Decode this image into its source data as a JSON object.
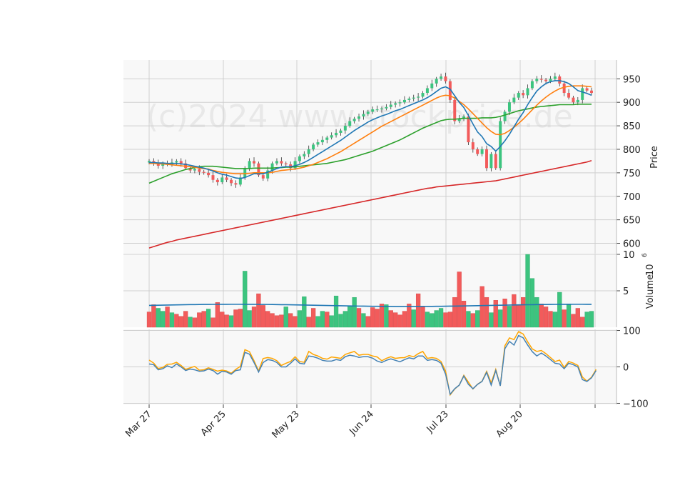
{
  "chart_data": {
    "type": "candlestick",
    "watermark": "(c)2024 www.stockprice.de",
    "x_ticks": [
      "Mar 27",
      "Apr 25",
      "May 23",
      "Jun 24",
      "Jul 23",
      "Aug 20"
    ],
    "colors": {
      "up": "#3cc47f",
      "down": "#f25b5b",
      "ma_short": "#1f77b4",
      "ma_mid": "#ff7f0e",
      "ma_long": "#2ca02c",
      "ma_200": "#d62728",
      "osc_1": "#4682b4",
      "osc_2": "#ffa500"
    },
    "price_panel": {
      "ylabel": "Price",
      "ylim": [
        578,
        990
      ],
      "yticks": [
        "600",
        "650",
        "700",
        "750",
        "800",
        "850",
        "900",
        "950"
      ],
      "close": [
        775,
        770,
        765,
        770,
        768,
        772,
        775,
        770,
        760,
        755,
        758,
        752,
        750,
        745,
        735,
        730,
        740,
        735,
        728,
        725,
        740,
        760,
        775,
        770,
        745,
        738,
        755,
        770,
        775,
        770,
        768,
        760,
        775,
        785,
        790,
        800,
        810,
        815,
        820,
        825,
        830,
        835,
        840,
        850,
        860,
        865,
        870,
        875,
        880,
        885,
        885,
        887,
        890,
        895,
        898,
        900,
        905,
        908,
        910,
        912,
        920,
        930,
        940,
        950,
        955,
        945,
        905,
        860,
        865,
        870,
        815,
        800,
        790,
        800,
        760,
        790,
        760,
        860,
        880,
        900,
        910,
        920,
        915,
        930,
        945,
        950,
        948,
        945,
        950,
        955,
        940,
        920,
        910,
        900,
        905,
        930,
        925,
        920
      ],
      "ma_short": [
        772,
        772,
        771,
        771,
        770,
        770,
        770,
        769,
        768,
        766,
        764,
        762,
        760,
        757,
        754,
        750,
        747,
        745,
        742,
        739,
        738,
        740,
        744,
        748,
        748,
        748,
        751,
        755,
        759,
        762,
        763,
        763,
        765,
        768,
        772,
        777,
        783,
        789,
        795,
        801,
        807,
        813,
        819,
        826,
        833,
        840,
        846,
        852,
        858,
        863,
        867,
        871,
        874,
        878,
        882,
        885,
        889,
        893,
        897,
        901,
        905,
        910,
        916,
        923,
        930,
        933,
        928,
        914,
        900,
        889,
        872,
        854,
        837,
        827,
        812,
        806,
        796,
        806,
        818,
        832,
        848,
        864,
        878,
        895,
        910,
        924,
        933,
        940,
        944,
        946,
        946,
        944,
        940,
        933,
        925,
        922,
        919,
        915
      ],
      "ma_mid": [
        770,
        770,
        769,
        769,
        768,
        767,
        766,
        765,
        764,
        763,
        762,
        760,
        759,
        758,
        755,
        753,
        751,
        750,
        749,
        748,
        748,
        748,
        749,
        750,
        750,
        750,
        750,
        751,
        753,
        755,
        756,
        757,
        758,
        760,
        762,
        765,
        768,
        772,
        776,
        780,
        785,
        790,
        795,
        801,
        807,
        813,
        819,
        825,
        831,
        837,
        843,
        849,
        854,
        859,
        864,
        869,
        874,
        879,
        884,
        889,
        894,
        899,
        904,
        909,
        913,
        915,
        914,
        909,
        902,
        895,
        886,
        876,
        866,
        856,
        846,
        838,
        832,
        831,
        834,
        840,
        847,
        855,
        864,
        874,
        884,
        894,
        903,
        911,
        918,
        924,
        929,
        932,
        934,
        935,
        935,
        935,
        934,
        933
      ],
      "ma_long": [
        728,
        732,
        736,
        740,
        744,
        748,
        751,
        754,
        757,
        759,
        761,
        763,
        764,
        764,
        764,
        763,
        762,
        761,
        760,
        759,
        759,
        759,
        759,
        760,
        760,
        760,
        760,
        760,
        761,
        761,
        762,
        762,
        763,
        764,
        765,
        766,
        767,
        768,
        769,
        770,
        772,
        774,
        776,
        778,
        781,
        784,
        787,
        790,
        793,
        796,
        800,
        804,
        808,
        812,
        816,
        820,
        825,
        830,
        835,
        840,
        845,
        849,
        853,
        857,
        861,
        863,
        864,
        864,
        865,
        866,
        866,
        866,
        866,
        867,
        867,
        867,
        868,
        870,
        873,
        876,
        879,
        882,
        884,
        886,
        888,
        890,
        891,
        892,
        893,
        894,
        895,
        895,
        895,
        895,
        896,
        896,
        896,
        896
      ],
      "ma_200": [
        590,
        593,
        596,
        599,
        602,
        604,
        607,
        609,
        611,
        613,
        615,
        617,
        619,
        621,
        623,
        625,
        627,
        629,
        631,
        633,
        635,
        637,
        639,
        641,
        643,
        645,
        647,
        649,
        651,
        653,
        655,
        657,
        659,
        661,
        663,
        665,
        667,
        669,
        671,
        673,
        675,
        677,
        679,
        681,
        683,
        685,
        687,
        689,
        691,
        693,
        695,
        697,
        699,
        701,
        703,
        705,
        707,
        709,
        711,
        713,
        715,
        717,
        718,
        720,
        721,
        722,
        723,
        724,
        725,
        726,
        727,
        728,
        729,
        730,
        731,
        732,
        733,
        735,
        737,
        739,
        741,
        743,
        745,
        747,
        749,
        751,
        753,
        755,
        757,
        759,
        761,
        763,
        765,
        767,
        769,
        771,
        773,
        776
      ]
    },
    "volume_panel": {
      "ylabel": "Volume",
      "unit_exponent": "6",
      "ylim": [
        0,
        10
      ],
      "yticks": [
        "5",
        "10"
      ],
      "avg_volume": 3.0,
      "values": [
        2.1,
        3.1,
        2.6,
        2.2,
        2.8,
        2.0,
        1.8,
        1.5,
        2.2,
        1.4,
        1.3,
        2.0,
        2.2,
        2.5,
        1.3,
        3.4,
        2.1,
        1.7,
        1.6,
        2.4,
        2.5,
        7.7,
        2.3,
        2.8,
        4.6,
        3.0,
        2.2,
        1.9,
        1.6,
        1.7,
        2.8,
        1.9,
        1.5,
        2.3,
        4.2,
        1.4,
        2.6,
        1.5,
        2.2,
        2.1,
        1.6,
        4.3,
        1.8,
        2.2,
        2.9,
        4.1,
        2.6,
        1.9,
        1.5,
        2.7,
        2.5,
        3.2,
        3.1,
        2.3,
        2.0,
        1.7,
        2.2,
        3.2,
        2.4,
        4.6,
        2.9,
        2.1,
        1.9,
        2.3,
        2.6,
        2.0,
        2.1,
        4.1,
        7.6,
        3.6,
        2.2,
        1.9,
        2.3,
        5.6,
        4.1,
        2.0,
        3.7,
        2.4,
        3.9,
        2.9,
        4.5,
        3.0,
        4.1,
        10.0,
        6.7,
        4.1,
        3.2,
        2.8,
        2.2,
        2.1,
        4.8,
        2.4,
        3.2,
        1.8,
        2.6,
        1.4,
        2.1,
        2.2
      ],
      "down": [
        1,
        1,
        0,
        0,
        1,
        0,
        1,
        1,
        1,
        0,
        1,
        1,
        1,
        0,
        1,
        1,
        1,
        1,
        0,
        1,
        1,
        0,
        0,
        1,
        1,
        1,
        1,
        1,
        1,
        1,
        0,
        1,
        1,
        0,
        0,
        1,
        1,
        0,
        0,
        1,
        0,
        0,
        0,
        0,
        0,
        0,
        1,
        0,
        1,
        1,
        1,
        1,
        0,
        1,
        1,
        1,
        1,
        1,
        0,
        1,
        1,
        0,
        0,
        0,
        0,
        1,
        1,
        1,
        1,
        1,
        0,
        1,
        0,
        1,
        1,
        0,
        1,
        0,
        1,
        0,
        1,
        1,
        1,
        0,
        0,
        0,
        1,
        1,
        1,
        0,
        0,
        1,
        0,
        1,
        1,
        1,
        0,
        0
      ]
    },
    "oscillator_panel": {
      "ylim": [
        -103,
        103
      ],
      "yticks": [
        "100",
        "0",
        "−100"
      ],
      "line_1": [
        8,
        6,
        -8,
        -5,
        3,
        -2,
        8,
        0,
        -10,
        -6,
        -8,
        -12,
        -11,
        -6,
        -10,
        -20,
        -12,
        -14,
        -20,
        -10,
        -8,
        40,
        35,
        12,
        -14,
        12,
        20,
        18,
        12,
        0,
        0,
        10,
        22,
        10,
        8,
        30,
        28,
        24,
        18,
        16,
        16,
        20,
        18,
        28,
        32,
        30,
        26,
        28,
        28,
        24,
        16,
        12,
        18,
        22,
        18,
        14,
        20,
        25,
        22,
        30,
        30,
        18,
        20,
        18,
        10,
        -20,
        -75,
        -60,
        -50,
        -25,
        -48,
        -60,
        -48,
        -40,
        -15,
        -50,
        -10,
        -52,
        50,
        70,
        60,
        86,
        80,
        60,
        42,
        30,
        38,
        30,
        20,
        10,
        8,
        -5,
        10,
        6,
        0,
        -35,
        -40,
        -30,
        -10
      ]
    }
  }
}
